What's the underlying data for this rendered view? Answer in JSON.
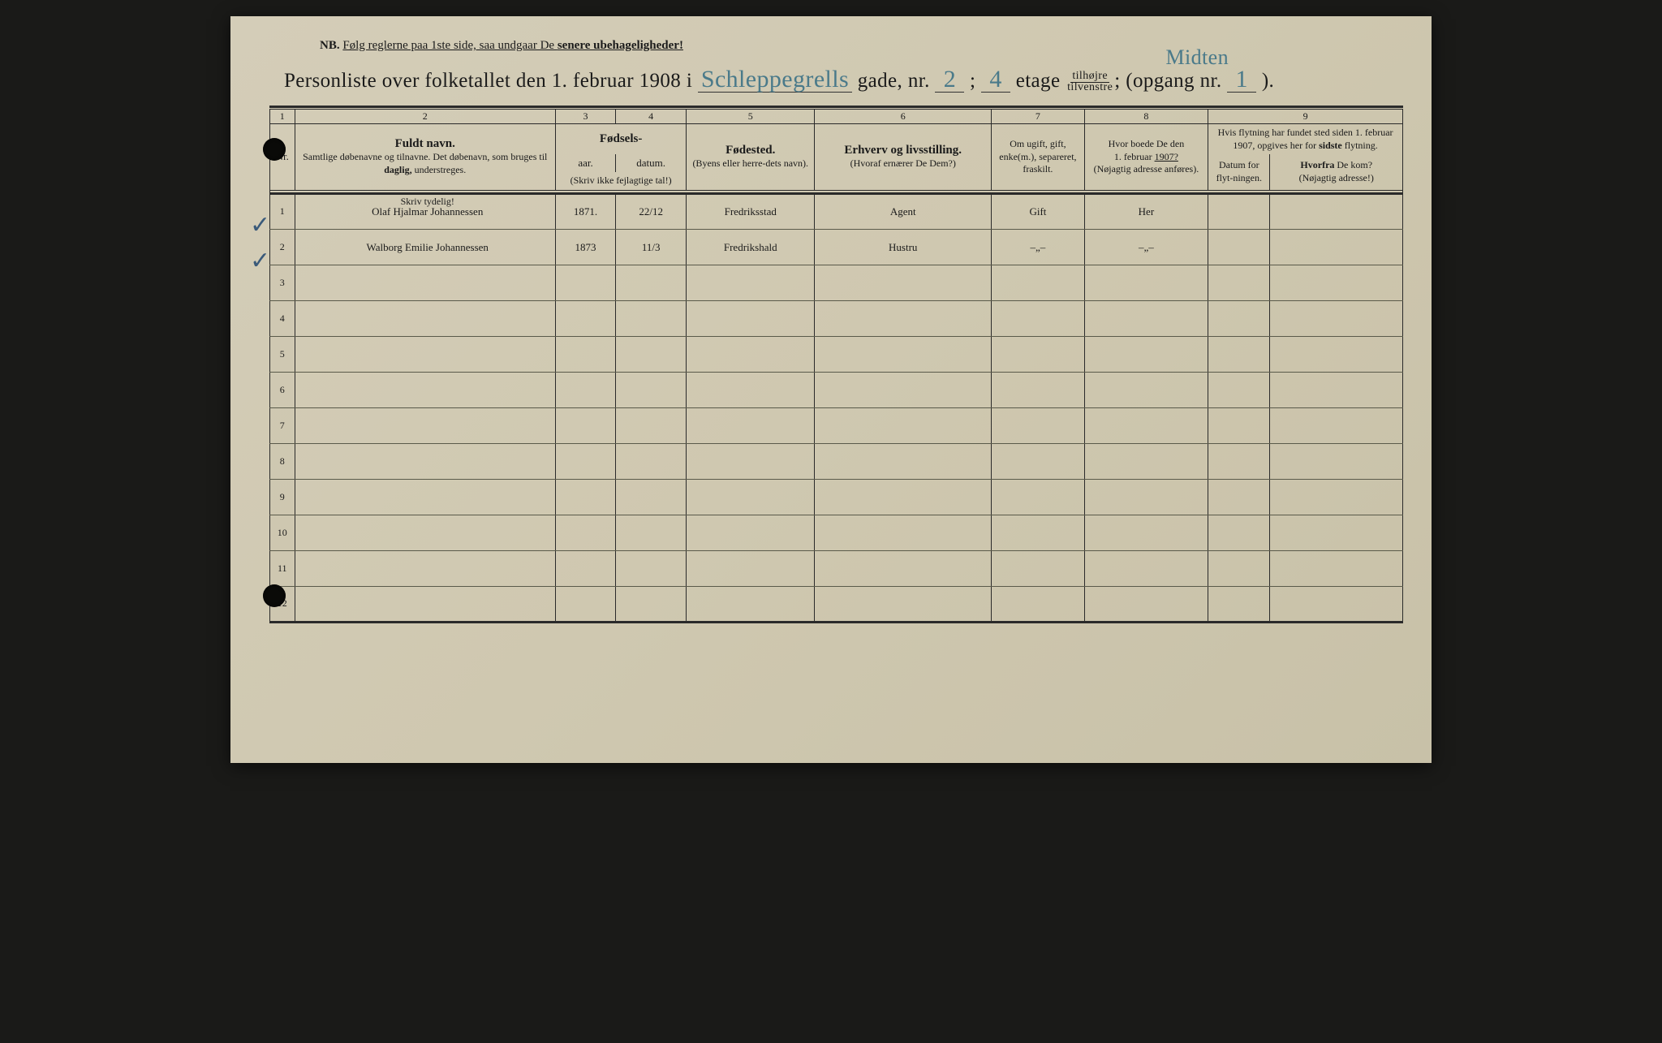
{
  "colors": {
    "paper": "#d0c9b2",
    "ink": "#1a1a1a",
    "handwriting": "#2a2a40",
    "handwriting_blue": "#4a7a8a",
    "rule": "#2a2a2a"
  },
  "nb": {
    "prefix": "NB.",
    "text_a": "Følg reglerne paa 1ste side, saa undgaar De ",
    "text_b": "senere ubehageligheder!"
  },
  "title": {
    "lead": "Personliste over folketallet den 1. februar 1908 i",
    "street_label_suffix": "gade, nr.",
    "etage_label": "etage",
    "tilhojre": "tilhøjre",
    "tilvenstre": "tilvenstre",
    "opgang_label": "(opgang nr.",
    "close": ").",
    "fill_street": "Schleppegrells",
    "fill_nr": "2",
    "fill_sep": ";",
    "fill_etage": "4",
    "fill_opgang": "1",
    "annotation_midten": "Midten"
  },
  "columns": {
    "nums": [
      "1",
      "2",
      "3",
      "4",
      "5",
      "6",
      "7",
      "8",
      "9"
    ],
    "c2_main": "Fuldt navn.",
    "c2_sub": "Samtlige døbenavne og tilnavne. Det døbenavn, som bruges til ",
    "c2_sub_daglig": "daglig,",
    "c2_sub_end": " understreges.",
    "c34_top": "Fødsels-",
    "c3": "aar.",
    "c4": "datum.",
    "c34_note": "(Skriv ikke fejlagtige tal!)",
    "c5_main": "Fødested.",
    "c5_sub": "(Byens eller herre-dets navn).",
    "c6_main": "Erhverv og livsstilling.",
    "c6_sub": "(Hvoraf ernærer De Dem?)",
    "c7": "Om ugift, gift, enke(m.), separeret, fraskilt.",
    "c8_a": "Hvor boede De den",
    "c8_b": "1. februar ",
    "c8_b_year": "1907?",
    "c8_sub": "(Nøjagtig adresse anføres).",
    "c9_top": "Hvis flytning har fundet sted siden 1. februar 1907, opgives her for ",
    "c9_top_sidste": "sidste",
    "c9_top_end": " flytning.",
    "c9a": "Datum for flyt-ningen.",
    "c9b_a": "Hvorfra",
    "c9b_b": " De kom?",
    "c9b_sub": "(Nøjagtig adresse!)",
    "skriv_tydelig": "Skriv tydelig!"
  },
  "rows": [
    {
      "n": "1",
      "check": "✓",
      "name": "Olaf Hjalmar Johannessen",
      "aar": "1871.",
      "datum": "22/12",
      "fodested": "Fredriksstad",
      "erhverv": "Agent",
      "status": "Gift",
      "boede": "Her",
      "flyt_dat": "",
      "flyt_fra": ""
    },
    {
      "n": "2",
      "check": "✓",
      "name": "Walborg Emilie Johannessen",
      "aar": "1873",
      "datum": "11/3",
      "fodested": "Fredrikshald",
      "erhverv": "Hustru",
      "status": "–„–",
      "boede": "–„–",
      "flyt_dat": "",
      "flyt_fra": ""
    },
    {
      "n": "3"
    },
    {
      "n": "4"
    },
    {
      "n": "5"
    },
    {
      "n": "6"
    },
    {
      "n": "7"
    },
    {
      "n": "8"
    },
    {
      "n": "9"
    },
    {
      "n": "10"
    },
    {
      "n": "11"
    },
    {
      "n": "12"
    }
  ]
}
